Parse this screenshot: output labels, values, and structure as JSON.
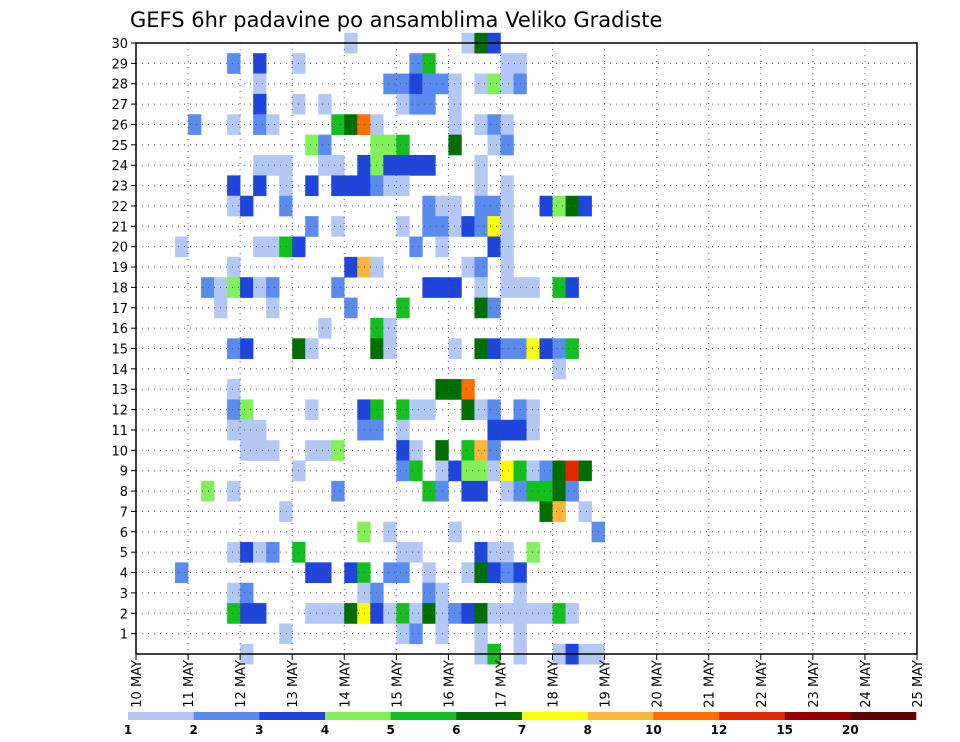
{
  "chart_data": {
    "type": "heatmap",
    "title": "GEFS 6hr padavine po ansamblima Veliko Gradiste",
    "y_ticks": [
      "1",
      "2",
      "3",
      "4",
      "5",
      "6",
      "7",
      "8",
      "9",
      "10",
      "11",
      "12",
      "13",
      "14",
      "15",
      "16",
      "17",
      "18",
      "19",
      "20",
      "21",
      "22",
      "23",
      "24",
      "25",
      "26",
      "27",
      "28",
      "29",
      "30"
    ],
    "x_ticks": [
      "10 MAY",
      "11 MAY",
      "12 MAY",
      "13 MAY",
      "14 MAY",
      "15 MAY",
      "16 MAY",
      "17 MAY",
      "18 MAY",
      "19 MAY",
      "20 MAY",
      "21 MAY",
      "22 MAY",
      "23 MAY",
      "24 MAY",
      "25 MAY"
    ],
    "ylim": [
      0,
      30
    ],
    "x_range": [
      "10 MAY",
      "25 MAY"
    ],
    "time_step_hours": 6,
    "grid": true,
    "colorbar": {
      "labels": [
        "1",
        "2",
        "3",
        "4",
        "5",
        "6",
        "7",
        "8",
        "10",
        "12",
        "15",
        "20"
      ],
      "colors": [
        "#b4c8f5",
        "#5a8cf0",
        "#1e46dc",
        "#82f05a",
        "#14be1e",
        "#006e00",
        "#ffff00",
        "#ffb43c",
        "#ff6e00",
        "#e62800",
        "#960000",
        "#640000"
      ]
    },
    "cells_note": "Each cell = [member, 6h step index from 10 MAY 00Z, class index into colorbar.colors]",
    "cells": [
      [
        30,
        16,
        0
      ],
      [
        30,
        25,
        0
      ],
      [
        30,
        26,
        5
      ],
      [
        30,
        27,
        2
      ],
      [
        29,
        7,
        1
      ],
      [
        29,
        9,
        2
      ],
      [
        29,
        12,
        0
      ],
      [
        29,
        21,
        1
      ],
      [
        29,
        22,
        4
      ],
      [
        29,
        28,
        0
      ],
      [
        29,
        29,
        0
      ],
      [
        28,
        9,
        0
      ],
      [
        28,
        19,
        1
      ],
      [
        28,
        20,
        1
      ],
      [
        28,
        21,
        2
      ],
      [
        28,
        22,
        1
      ],
      [
        28,
        23,
        1
      ],
      [
        28,
        24,
        0
      ],
      [
        28,
        26,
        0
      ],
      [
        28,
        27,
        3
      ],
      [
        28,
        28,
        0
      ],
      [
        28,
        29,
        1
      ],
      [
        27,
        9,
        2
      ],
      [
        27,
        12,
        0
      ],
      [
        27,
        14,
        0
      ],
      [
        27,
        20,
        0
      ],
      [
        27,
        21,
        1
      ],
      [
        27,
        22,
        1
      ],
      [
        27,
        24,
        0
      ],
      [
        26,
        4,
        1
      ],
      [
        26,
        7,
        0
      ],
      [
        26,
        9,
        1
      ],
      [
        26,
        10,
        0
      ],
      [
        26,
        15,
        4
      ],
      [
        26,
        16,
        5
      ],
      [
        26,
        17,
        8
      ],
      [
        26,
        18,
        0
      ],
      [
        26,
        24,
        0
      ],
      [
        26,
        26,
        0
      ],
      [
        26,
        27,
        1
      ],
      [
        26,
        28,
        0
      ],
      [
        25,
        13,
        3
      ],
      [
        25,
        14,
        1
      ],
      [
        25,
        18,
        3
      ],
      [
        25,
        19,
        3
      ],
      [
        25,
        20,
        4
      ],
      [
        25,
        24,
        5
      ],
      [
        25,
        27,
        0
      ],
      [
        25,
        28,
        1
      ],
      [
        24,
        9,
        0
      ],
      [
        24,
        10,
        0
      ],
      [
        24,
        11,
        0
      ],
      [
        24,
        14,
        0
      ],
      [
        24,
        15,
        0
      ],
      [
        24,
        17,
        2
      ],
      [
        24,
        18,
        3
      ],
      [
        24,
        19,
        2
      ],
      [
        24,
        20,
        2
      ],
      [
        24,
        21,
        2
      ],
      [
        24,
        22,
        2
      ],
      [
        24,
        26,
        0
      ],
      [
        23,
        7,
        2
      ],
      [
        23,
        9,
        2
      ],
      [
        23,
        11,
        0
      ],
      [
        23,
        13,
        2
      ],
      [
        23,
        15,
        2
      ],
      [
        23,
        16,
        2
      ],
      [
        23,
        17,
        2
      ],
      [
        23,
        18,
        1
      ],
      [
        23,
        19,
        0
      ],
      [
        23,
        20,
        0
      ],
      [
        23,
        26,
        0
      ],
      [
        23,
        28,
        0
      ],
      [
        22,
        7,
        0
      ],
      [
        22,
        8,
        2
      ],
      [
        22,
        11,
        1
      ],
      [
        22,
        22,
        1
      ],
      [
        22,
        23,
        0
      ],
      [
        22,
        24,
        0
      ],
      [
        22,
        26,
        1
      ],
      [
        22,
        27,
        1
      ],
      [
        22,
        28,
        0
      ],
      [
        22,
        31,
        2
      ],
      [
        22,
        32,
        3
      ],
      [
        22,
        33,
        5
      ],
      [
        22,
        34,
        2
      ],
      [
        21,
        13,
        1
      ],
      [
        21,
        15,
        0
      ],
      [
        21,
        20,
        0
      ],
      [
        21,
        22,
        1
      ],
      [
        21,
        23,
        1
      ],
      [
        21,
        24,
        0
      ],
      [
        21,
        25,
        2
      ],
      [
        21,
        26,
        1
      ],
      [
        21,
        27,
        6
      ],
      [
        21,
        28,
        0
      ],
      [
        20,
        3,
        0
      ],
      [
        20,
        9,
        0
      ],
      [
        20,
        10,
        0
      ],
      [
        20,
        11,
        4
      ],
      [
        20,
        12,
        2
      ],
      [
        20,
        21,
        1
      ],
      [
        20,
        23,
        0
      ],
      [
        20,
        27,
        2
      ],
      [
        20,
        28,
        0
      ],
      [
        19,
        7,
        0
      ],
      [
        19,
        16,
        2
      ],
      [
        19,
        17,
        7
      ],
      [
        19,
        18,
        0
      ],
      [
        19,
        25,
        0
      ],
      [
        19,
        26,
        1
      ],
      [
        19,
        28,
        0
      ],
      [
        18,
        5,
        1
      ],
      [
        18,
        6,
        0
      ],
      [
        18,
        7,
        3
      ],
      [
        18,
        8,
        2
      ],
      [
        18,
        9,
        0
      ],
      [
        18,
        10,
        1
      ],
      [
        18,
        15,
        1
      ],
      [
        18,
        22,
        2
      ],
      [
        18,
        23,
        2
      ],
      [
        18,
        24,
        2
      ],
      [
        18,
        26,
        0
      ],
      [
        18,
        28,
        0
      ],
      [
        18,
        29,
        0
      ],
      [
        18,
        30,
        0
      ],
      [
        18,
        32,
        4
      ],
      [
        18,
        33,
        2
      ],
      [
        17,
        6,
        0
      ],
      [
        17,
        10,
        0
      ],
      [
        17,
        16,
        1
      ],
      [
        17,
        20,
        4
      ],
      [
        17,
        26,
        5
      ],
      [
        17,
        27,
        1
      ],
      [
        16,
        14,
        0
      ],
      [
        16,
        18,
        4
      ],
      [
        16,
        19,
        0
      ],
      [
        15,
        7,
        1
      ],
      [
        15,
        8,
        2
      ],
      [
        15,
        12,
        5
      ],
      [
        15,
        13,
        0
      ],
      [
        15,
        18,
        5
      ],
      [
        15,
        19,
        0
      ],
      [
        15,
        24,
        0
      ],
      [
        15,
        26,
        5
      ],
      [
        15,
        27,
        2
      ],
      [
        15,
        28,
        1
      ],
      [
        15,
        29,
        1
      ],
      [
        15,
        30,
        6
      ],
      [
        15,
        31,
        2
      ],
      [
        15,
        32,
        1
      ],
      [
        15,
        33,
        4
      ],
      [
        14,
        32,
        0
      ],
      [
        13,
        7,
        0
      ],
      [
        13,
        23,
        5
      ],
      [
        13,
        24,
        5
      ],
      [
        13,
        25,
        8
      ],
      [
        12,
        7,
        1
      ],
      [
        12,
        8,
        3
      ],
      [
        12,
        13,
        0
      ],
      [
        12,
        17,
        2
      ],
      [
        12,
        18,
        4
      ],
      [
        12,
        20,
        4
      ],
      [
        12,
        21,
        0
      ],
      [
        12,
        22,
        0
      ],
      [
        12,
        25,
        5
      ],
      [
        12,
        26,
        0
      ],
      [
        12,
        27,
        1
      ],
      [
        12,
        29,
        1
      ],
      [
        12,
        30,
        0
      ],
      [
        11,
        7,
        0
      ],
      [
        11,
        8,
        0
      ],
      [
        11,
        9,
        0
      ],
      [
        11,
        17,
        1
      ],
      [
        11,
        18,
        1
      ],
      [
        11,
        20,
        0
      ],
      [
        11,
        27,
        2
      ],
      [
        11,
        28,
        2
      ],
      [
        11,
        29,
        2
      ],
      [
        11,
        30,
        0
      ],
      [
        10,
        8,
        0
      ],
      [
        10,
        9,
        0
      ],
      [
        10,
        10,
        0
      ],
      [
        10,
        13,
        0
      ],
      [
        10,
        14,
        0
      ],
      [
        10,
        15,
        3
      ],
      [
        10,
        20,
        2
      ],
      [
        10,
        21,
        0
      ],
      [
        10,
        23,
        5
      ],
      [
        10,
        25,
        4
      ],
      [
        10,
        26,
        7
      ],
      [
        10,
        27,
        1
      ],
      [
        9,
        12,
        0
      ],
      [
        9,
        20,
        1
      ],
      [
        9,
        21,
        4
      ],
      [
        9,
        23,
        0
      ],
      [
        9,
        24,
        2
      ],
      [
        9,
        25,
        3
      ],
      [
        9,
        26,
        3
      ],
      [
        9,
        27,
        0
      ],
      [
        9,
        28,
        6
      ],
      [
        9,
        29,
        4
      ],
      [
        9,
        30,
        0
      ],
      [
        9,
        31,
        1
      ],
      [
        9,
        32,
        5
      ],
      [
        9,
        33,
        9
      ],
      [
        9,
        34,
        5
      ],
      [
        8,
        5,
        3
      ],
      [
        8,
        7,
        0
      ],
      [
        8,
        15,
        1
      ],
      [
        8,
        22,
        4
      ],
      [
        8,
        23,
        1
      ],
      [
        8,
        25,
        2
      ],
      [
        8,
        26,
        2
      ],
      [
        8,
        28,
        0
      ],
      [
        8,
        29,
        1
      ],
      [
        8,
        30,
        4
      ],
      [
        8,
        31,
        4
      ],
      [
        8,
        32,
        5
      ],
      [
        8,
        33,
        1
      ],
      [
        7,
        11,
        0
      ],
      [
        7,
        31,
        5
      ],
      [
        7,
        32,
        7
      ],
      [
        7,
        34,
        0
      ],
      [
        6,
        17,
        3
      ],
      [
        6,
        19,
        0
      ],
      [
        6,
        24,
        0
      ],
      [
        6,
        35,
        1
      ],
      [
        5,
        7,
        0
      ],
      [
        5,
        8,
        2
      ],
      [
        5,
        9,
        0
      ],
      [
        5,
        10,
        1
      ],
      [
        5,
        12,
        4
      ],
      [
        5,
        20,
        0
      ],
      [
        5,
        21,
        0
      ],
      [
        5,
        26,
        2
      ],
      [
        5,
        27,
        0
      ],
      [
        5,
        28,
        0
      ],
      [
        5,
        30,
        3
      ],
      [
        4,
        3,
        1
      ],
      [
        4,
        13,
        2
      ],
      [
        4,
        14,
        2
      ],
      [
        4,
        16,
        2
      ],
      [
        4,
        17,
        4
      ],
      [
        4,
        19,
        1
      ],
      [
        4,
        20,
        1
      ],
      [
        4,
        22,
        0
      ],
      [
        4,
        25,
        0
      ],
      [
        4,
        26,
        5
      ],
      [
        4,
        27,
        2
      ],
      [
        4,
        28,
        1
      ],
      [
        4,
        29,
        2
      ],
      [
        3,
        7,
        0
      ],
      [
        3,
        8,
        1
      ],
      [
        3,
        17,
        0
      ],
      [
        3,
        18,
        1
      ],
      [
        3,
        22,
        1
      ],
      [
        3,
        23,
        0
      ],
      [
        3,
        29,
        0
      ],
      [
        2,
        7,
        4
      ],
      [
        2,
        8,
        2
      ],
      [
        2,
        9,
        2
      ],
      [
        2,
        13,
        0
      ],
      [
        2,
        14,
        0
      ],
      [
        2,
        15,
        0
      ],
      [
        2,
        16,
        5
      ],
      [
        2,
        17,
        6
      ],
      [
        2,
        18,
        2
      ],
      [
        2,
        19,
        0
      ],
      [
        2,
        20,
        4
      ],
      [
        2,
        21,
        0
      ],
      [
        2,
        22,
        5
      ],
      [
        2,
        23,
        0
      ],
      [
        2,
        24,
        1
      ],
      [
        2,
        25,
        2
      ],
      [
        2,
        26,
        5
      ],
      [
        2,
        27,
        0
      ],
      [
        2,
        28,
        0
      ],
      [
        2,
        29,
        0
      ],
      [
        2,
        30,
        0
      ],
      [
        2,
        31,
        0
      ],
      [
        2,
        32,
        4
      ],
      [
        2,
        33,
        0
      ],
      [
        1,
        11,
        0
      ],
      [
        1,
        20,
        0
      ],
      [
        1,
        21,
        1
      ],
      [
        1,
        23,
        0
      ],
      [
        1,
        26,
        0
      ],
      [
        1,
        29,
        0
      ],
      [
        0,
        8,
        0
      ],
      [
        0,
        26,
        0
      ],
      [
        0,
        27,
        4
      ],
      [
        0,
        29,
        0
      ],
      [
        0,
        32,
        0
      ],
      [
        0,
        33,
        2
      ],
      [
        0,
        34,
        0
      ],
      [
        0,
        35,
        0
      ]
    ]
  }
}
